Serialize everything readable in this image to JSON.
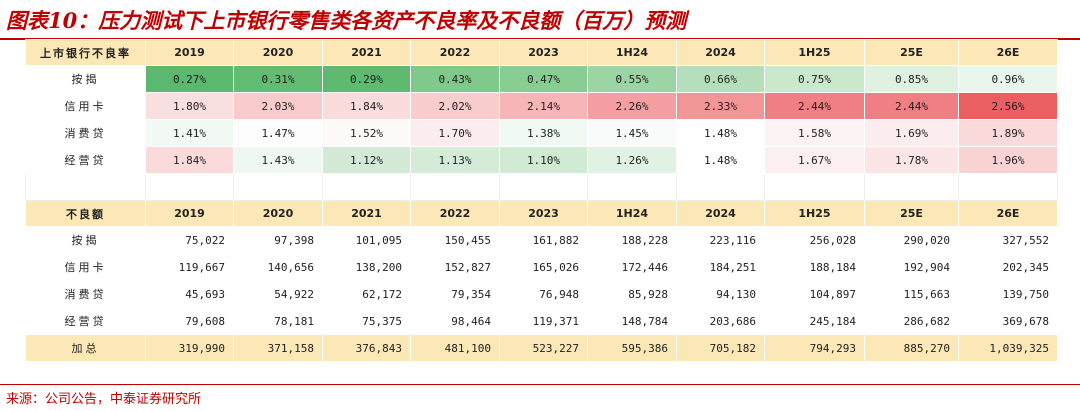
{
  "title": "图表10：压力测试下上市银行零售类各资产不良率及不良额（百万）预测",
  "ratio_table": {
    "header": "上市银行不良率",
    "columns": [
      "2019",
      "2020",
      "2021",
      "2022",
      "2023",
      "1H24",
      "2024",
      "1H25",
      "25E",
      "26E"
    ],
    "rows": [
      {
        "label": "按揭",
        "values": [
          "0.27%",
          "0.31%",
          "0.29%",
          "0.43%",
          "0.47%",
          "0.55%",
          "0.66%",
          "0.75%",
          "0.85%",
          "0.96%"
        ],
        "colors": [
          "#5bb96f",
          "#62bc74",
          "#5fba71",
          "#7fc98a",
          "#88cd92",
          "#9cd5a4",
          "#b5dfba",
          "#c9e8cc",
          "#dff1e1",
          "#e9f6eb"
        ]
      },
      {
        "label": "信用卡",
        "values": [
          "1.80%",
          "2.03%",
          "1.84%",
          "2.02%",
          "2.14%",
          "2.26%",
          "2.33%",
          "2.44%",
          "2.44%",
          "2.56%"
        ],
        "colors": [
          "#fadfe0",
          "#f9cbcd",
          "#fadcdd",
          "#f9cccd",
          "#f7b5b7",
          "#f49fa2",
          "#f29597",
          "#ef7f82",
          "#ef7f82",
          "#ea5f62"
        ]
      },
      {
        "label": "消费贷",
        "values": [
          "1.41%",
          "1.47%",
          "1.52%",
          "1.70%",
          "1.38%",
          "1.45%",
          "1.48%",
          "1.58%",
          "1.69%",
          "1.89%"
        ],
        "colors": [
          "#f3faf5",
          "#fdfdfe",
          "#fefafa",
          "#fbeced",
          "#f1f9f3",
          "#fafcfc",
          "#fefefe",
          "#fcf3f4",
          "#fbedee",
          "#fad9da"
        ]
      },
      {
        "label": "经营贷",
        "values": [
          "1.84%",
          "1.43%",
          "1.12%",
          "1.13%",
          "1.10%",
          "1.26%",
          "1.48%",
          "1.67%",
          "1.78%",
          "1.96%"
        ],
        "colors": [
          "#fadadb",
          "#eef8f0",
          "#d3ebd6",
          "#d4ecd7",
          "#d0ead3",
          "#e0f2e3",
          "#fefefe",
          "#fcefef",
          "#fbe5e6",
          "#f9d2d4"
        ]
      }
    ]
  },
  "amount_table": {
    "header": "不良额",
    "columns": [
      "2019",
      "2020",
      "2021",
      "2022",
      "2023",
      "1H24",
      "2024",
      "1H25",
      "25E",
      "26E"
    ],
    "rows": [
      {
        "label": "按揭",
        "values": [
          "75,022",
          "97,398",
          "101,095",
          "150,455",
          "161,882",
          "188,228",
          "223,116",
          "256,028",
          "290,020",
          "327,552"
        ]
      },
      {
        "label": "信用卡",
        "values": [
          "119,667",
          "140,656",
          "138,200",
          "152,827",
          "165,026",
          "172,446",
          "184,251",
          "188,184",
          "192,904",
          "202,345"
        ]
      },
      {
        "label": "消费贷",
        "values": [
          "45,693",
          "54,922",
          "62,172",
          "79,354",
          "76,948",
          "85,928",
          "94,130",
          "104,897",
          "115,663",
          "139,750"
        ]
      },
      {
        "label": "经营贷",
        "values": [
          "79,608",
          "78,181",
          "75,375",
          "98,464",
          "119,371",
          "148,784",
          "203,686",
          "245,184",
          "286,682",
          "369,678"
        ]
      }
    ],
    "total": {
      "label": "加总",
      "values": [
        "319,990",
        "371,158",
        "376,843",
        "481,100",
        "523,227",
        "595,386",
        "705,182",
        "794,293",
        "885,270",
        "1,039,325"
      ]
    }
  },
  "source": "来源：公司公告，中泰证券研究所",
  "colors": {
    "accent": "#c00000",
    "header_bg": "#fce8b6"
  }
}
